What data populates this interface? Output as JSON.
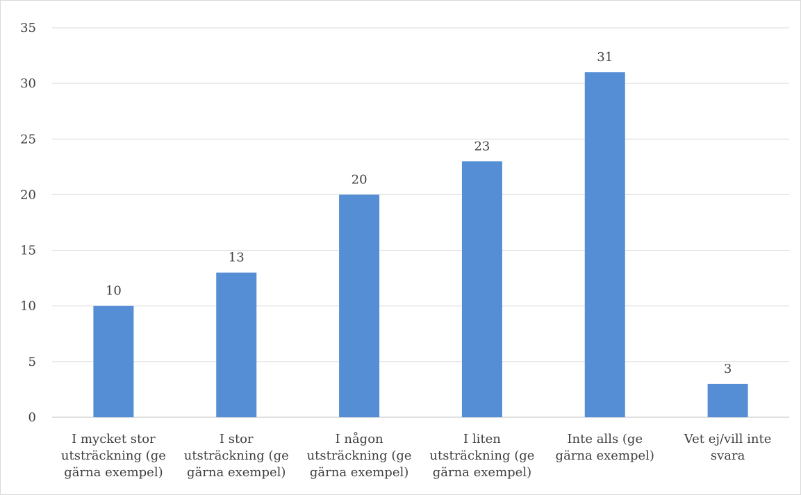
{
  "chart_data": {
    "type": "bar",
    "categories": [
      [
        "I mycket stor",
        "utsträckning (ge",
        "gärna exempel)"
      ],
      [
        "I stor",
        "utsträckning (ge",
        "gärna exempel)"
      ],
      [
        "I någon",
        "utsträckning (ge",
        "gärna exempel)"
      ],
      [
        "I liten",
        "utsträckning (ge",
        "gärna exempel)"
      ],
      [
        "Inte alls (ge",
        "gärna exempel)"
      ],
      [
        "Vet ej/vill inte",
        "svara"
      ]
    ],
    "values": [
      10,
      13,
      20,
      23,
      31,
      3
    ],
    "data_labels": [
      "10",
      "13",
      "20",
      "23",
      "31",
      "3"
    ],
    "title": "",
    "xlabel": "",
    "ylabel": "",
    "ylim": [
      0,
      35
    ],
    "yticks": [
      0,
      5,
      10,
      15,
      20,
      25,
      30,
      35
    ],
    "grid": true,
    "legend": "none",
    "colors": {
      "bar": "#558ed5",
      "grid": "#d9d9d9",
      "text": "#404040"
    }
  }
}
